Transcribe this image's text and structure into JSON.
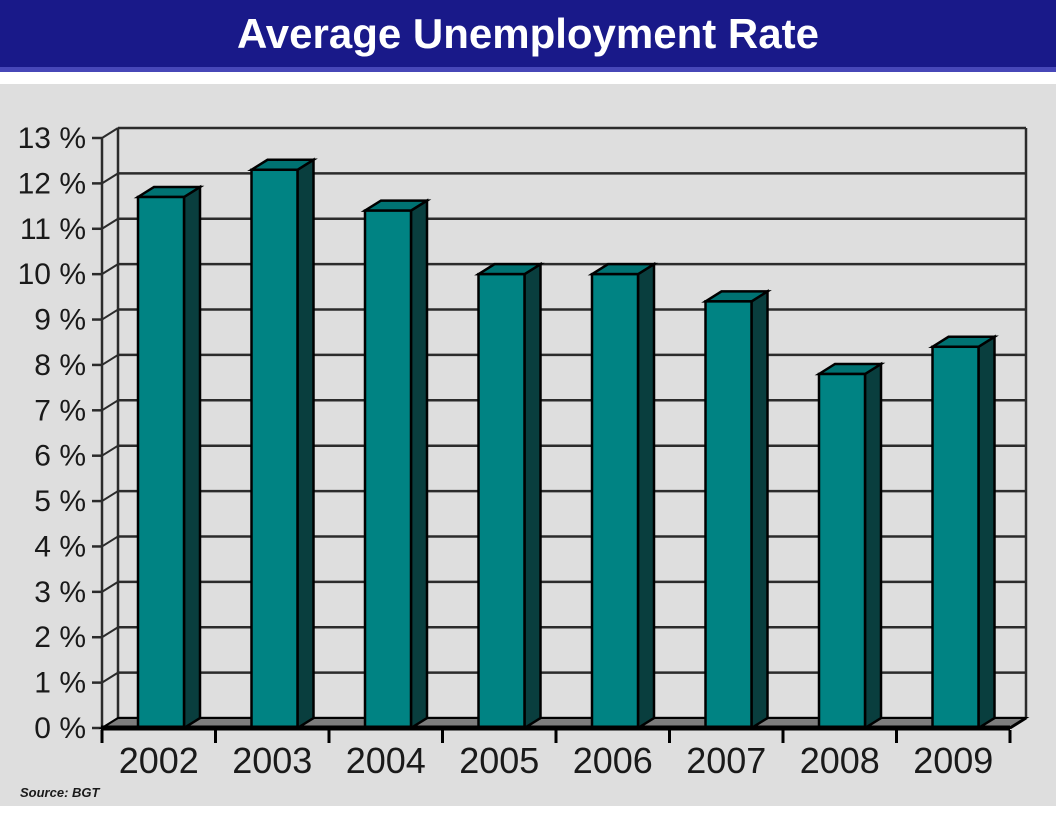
{
  "title": "Average Unemployment Rate",
  "source_note": "Source: BGT",
  "colors": {
    "title_bar_bg": "#191989",
    "title_bar_edge": "#4747b8",
    "title_text": "#ffffff",
    "panel_bg": "#dedede",
    "gridline": "#2b2b2b",
    "axis_line": "#000000",
    "axis_text": "#1a1a1a",
    "floor": "#7d7d7d",
    "bar_front": "#008383",
    "bar_top": "#007272",
    "bar_side": "#093e3e",
    "bar_outline": "#000000"
  },
  "chart_data": {
    "type": "bar",
    "style": "3d-column",
    "title": "Average Unemployment Rate",
    "xlabel": "",
    "ylabel": "",
    "categories": [
      "2002",
      "2003",
      "2004",
      "2005",
      "2006",
      "2007",
      "2008",
      "2009"
    ],
    "values": [
      11.7,
      12.3,
      11.4,
      10.0,
      10.0,
      9.4,
      7.8,
      8.4
    ],
    "unit": "%",
    "ylim": [
      0,
      13
    ],
    "ytick_step": 1,
    "ytick_labels": [
      "0 %",
      "1 %",
      "2 %",
      "3 %",
      "4 %",
      "5 %",
      "6 %",
      "7 %",
      "8 %",
      "9 %",
      "10 %",
      "11 %",
      "12 %",
      "13 %"
    ],
    "grid": true,
    "legend": false,
    "annotation": "Source: BGT"
  }
}
